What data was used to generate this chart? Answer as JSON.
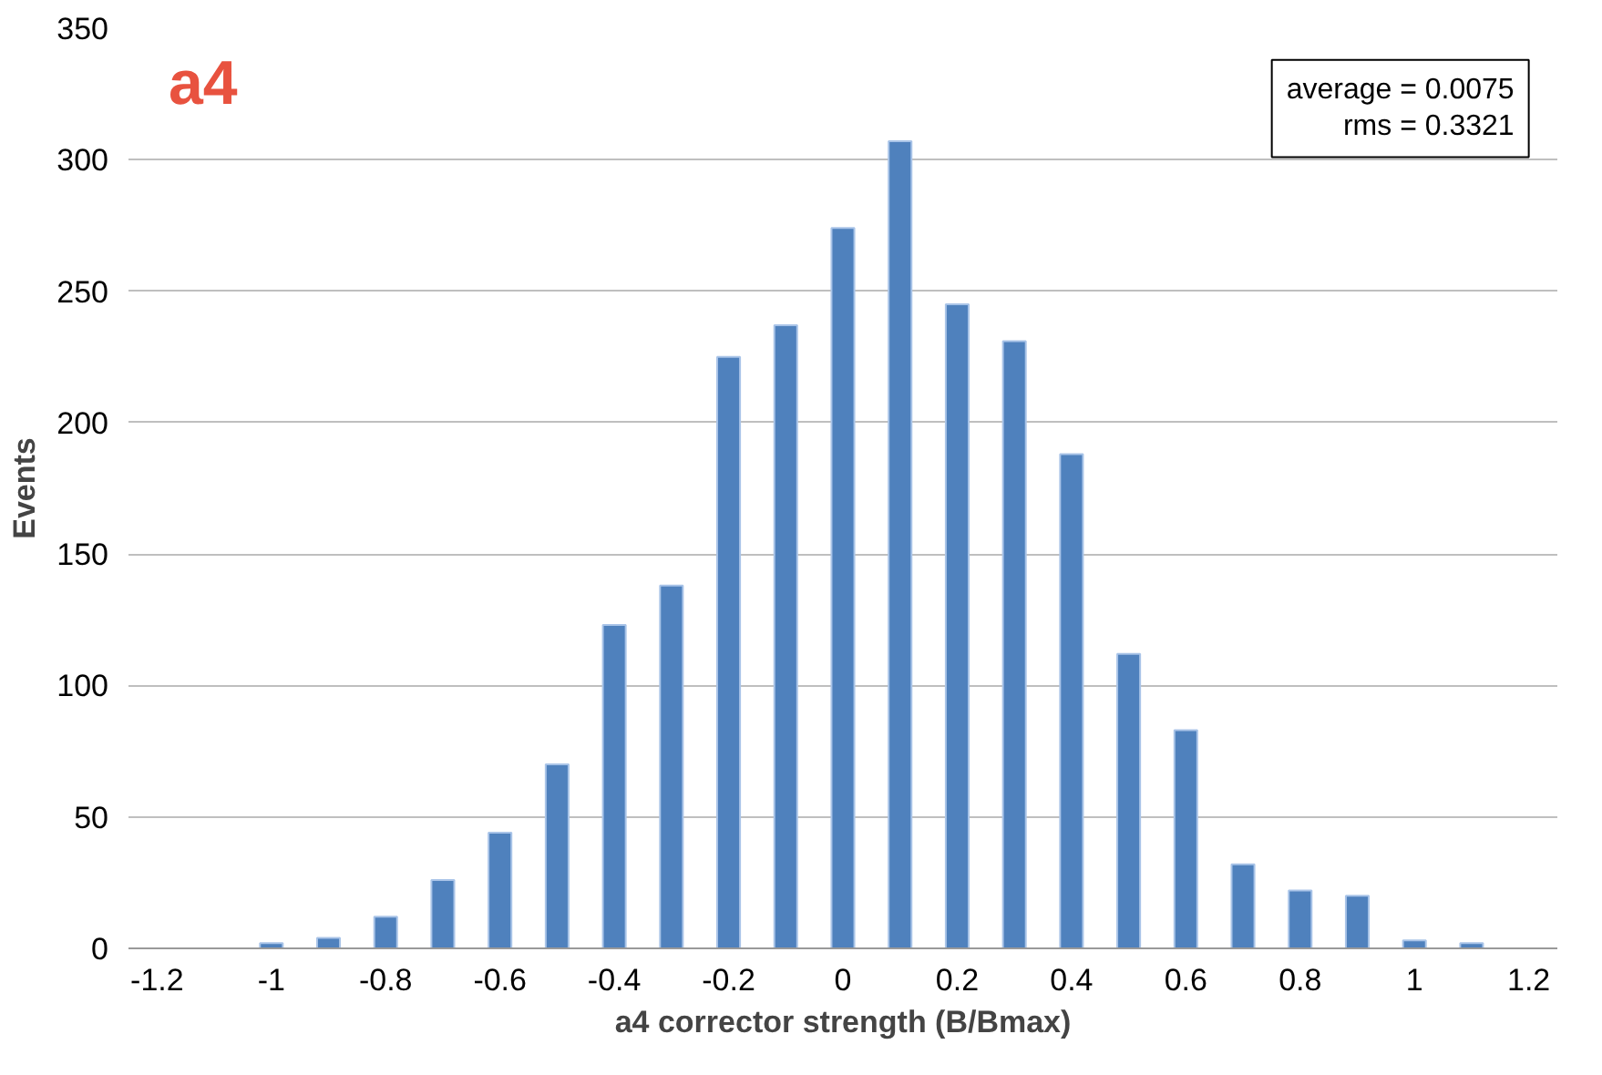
{
  "chart_data": {
    "type": "bar",
    "xlabel": "a4 corrector strength (B/Bmax)",
    "ylabel": "Events",
    "x": [
      -1.0,
      -0.9,
      -0.8,
      -0.7,
      -0.6,
      -0.5,
      -0.4,
      -0.3,
      -0.2,
      -0.1,
      0,
      0.1,
      0.2,
      0.3,
      0.4,
      0.5,
      0.6,
      0.7,
      0.8,
      0.9,
      1.0,
      1.1
    ],
    "values": [
      2,
      4,
      12,
      26,
      44,
      70,
      123,
      138,
      225,
      237,
      274,
      307,
      245,
      231,
      188,
      112,
      83,
      32,
      22,
      20,
      3,
      2
    ],
    "color": "#4f81bd",
    "xlim": [
      -1.25,
      1.25
    ],
    "xticks": [
      -1.2,
      -1,
      -0.8,
      -0.6,
      -0.4,
      -0.2,
      0,
      0.2,
      0.4,
      0.6,
      0.8,
      1,
      1.2
    ],
    "ylim": [
      0,
      350
    ],
    "yticks": [
      0,
      50,
      100,
      150,
      200,
      250,
      300,
      350
    ],
    "grid": "y",
    "annotations": [
      "a4",
      "average = 0.0075\nrms = 0.3321"
    ]
  }
}
